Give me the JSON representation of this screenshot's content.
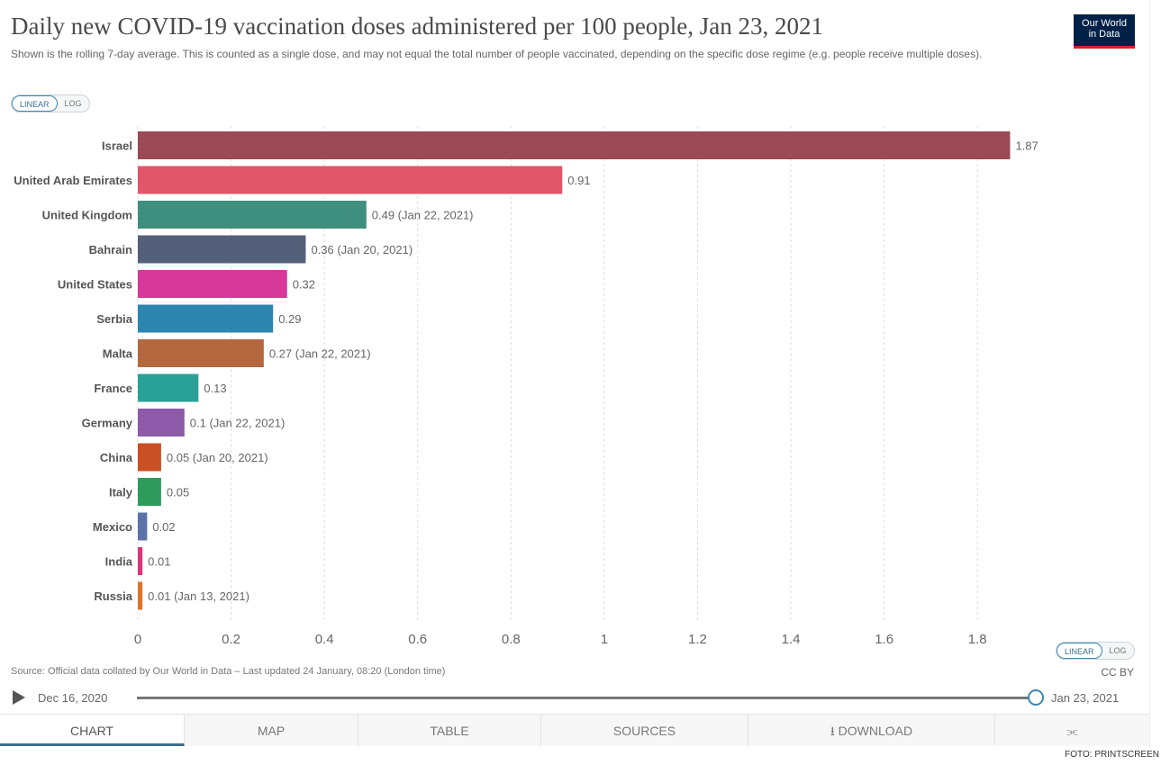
{
  "header": {
    "title": "Daily new COVID-19 vaccination doses administered per 100 people, Jan 23, 2021",
    "subtitle": "Shown is the rolling 7-day average. This is counted as a single dose, and may not equal the total number of people vaccinated, depending on the specific dose regime (e.g. people receive multiple doses).",
    "logo_line1": "Our World",
    "logo_line2": "in Data"
  },
  "scale_toggle": {
    "linear": "LINEAR",
    "log": "LOG"
  },
  "chart_data": {
    "type": "bar",
    "orientation": "horizontal",
    "categories": [
      "Israel",
      "United Arab Emirates",
      "United Kingdom",
      "Bahrain",
      "United States",
      "Serbia",
      "Malta",
      "France",
      "Germany",
      "China",
      "Italy",
      "Mexico",
      "India",
      "Russia"
    ],
    "values": [
      1.87,
      0.91,
      0.49,
      0.36,
      0.32,
      0.29,
      0.27,
      0.13,
      0.1,
      0.05,
      0.05,
      0.02,
      0.01,
      0.01
    ],
    "value_labels": [
      "1.87",
      "0.91",
      "0.49 (Jan 22, 2021)",
      "0.36 (Jan 20, 2021)",
      "0.32",
      "0.29",
      "0.27 (Jan 22, 2021)",
      "0.13",
      "0.1 (Jan 22, 2021)",
      "0.05 (Jan 20, 2021)",
      "0.05",
      "0.02",
      "0.01",
      "0.01 (Jan 13, 2021)"
    ],
    "colors": [
      "#9a4a55",
      "#e0566a",
      "#3f8f7e",
      "#545f7a",
      "#d6399a",
      "#2d86b0",
      "#b4683f",
      "#2aa198",
      "#8c5aa8",
      "#c94f24",
      "#2e9a5c",
      "#5c72a8",
      "#d8377a",
      "#d9742e"
    ],
    "xlim": [
      0,
      1.9
    ],
    "x_ticks": [
      "0",
      "0.2",
      "0.4",
      "0.6",
      "0.8",
      "1",
      "1.2",
      "1.4",
      "1.6",
      "1.8"
    ],
    "x_tick_values": [
      0,
      0.2,
      0.4,
      0.6,
      0.8,
      1,
      1.2,
      1.4,
      1.6,
      1.8
    ],
    "grid": true
  },
  "footer": {
    "source": "Source: Official data collated by Our World in Data – Last updated 24 January, 08:20 (London time)",
    "license": "CC BY"
  },
  "timeline": {
    "start": "Dec 16, 2020",
    "end": "Jan 23, 2021"
  },
  "tabs": {
    "chart": "CHART",
    "map": "MAP",
    "table": "TABLE",
    "sources": "SOURCES",
    "download": "DOWNLOAD"
  },
  "icons": {
    "download": "download-icon",
    "share": "share-icon",
    "play": "play-icon"
  },
  "credit": "FOTO: PRINTSCREEN"
}
